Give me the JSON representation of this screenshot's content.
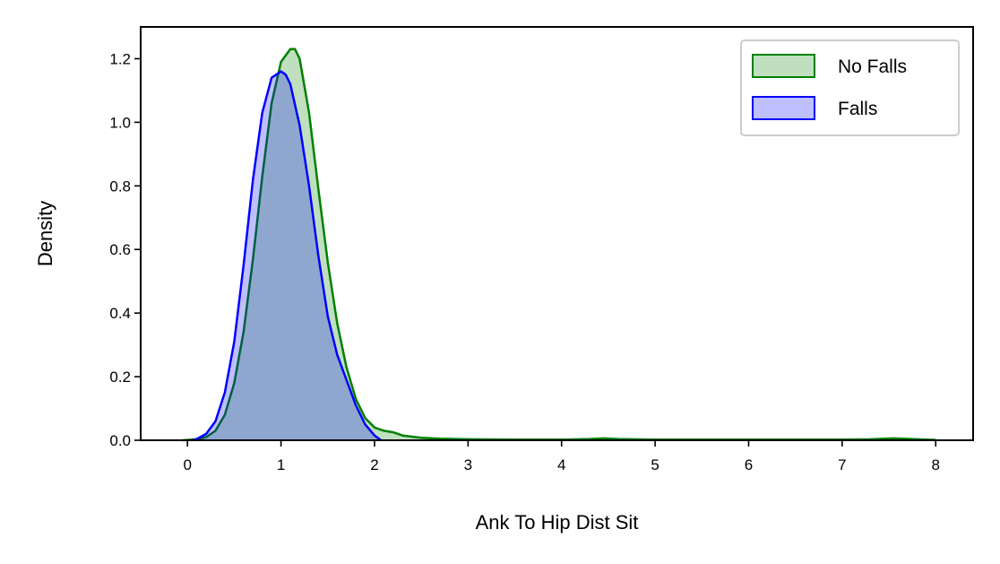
{
  "chart_data": {
    "type": "area",
    "title": "",
    "xlabel": "Ank To Hip Dist Sit",
    "ylabel": "Density",
    "xlim": [
      -0.5,
      8.4
    ],
    "ylim": [
      0,
      1.3
    ],
    "xticks": [
      0,
      1,
      2,
      3,
      4,
      5,
      6,
      7,
      8
    ],
    "yticks": [
      0.0,
      0.2,
      0.4,
      0.6,
      0.8,
      1.0,
      1.2
    ],
    "xtick_labels": [
      "0",
      "1",
      "2",
      "3",
      "4",
      "5",
      "6",
      "7",
      "8"
    ],
    "ytick_labels": [
      "0.0",
      "0.2",
      "0.4",
      "0.6",
      "0.8",
      "1.0",
      "1.2"
    ],
    "grid": false,
    "legend_position": "top-right",
    "series": [
      {
        "name": "No Falls",
        "line_color": "#008000",
        "fill_color": "#008000",
        "fill_opacity": 0.25,
        "x": [
          -0.05,
          0.1,
          0.2,
          0.3,
          0.4,
          0.5,
          0.6,
          0.7,
          0.8,
          0.9,
          1.0,
          1.1,
          1.15,
          1.2,
          1.3,
          1.4,
          1.5,
          1.6,
          1.7,
          1.8,
          1.9,
          2.0,
          2.1,
          2.2,
          2.3,
          2.5,
          2.7,
          3.0,
          3.5,
          4.0,
          4.3,
          4.45,
          4.6,
          5.0,
          6.0,
          7.0,
          7.3,
          7.55,
          7.8,
          8.0
        ],
        "y": [
          0.0,
          0.003,
          0.01,
          0.03,
          0.08,
          0.18,
          0.34,
          0.57,
          0.83,
          1.06,
          1.19,
          1.23,
          1.23,
          1.2,
          1.03,
          0.79,
          0.56,
          0.37,
          0.23,
          0.13,
          0.07,
          0.04,
          0.03,
          0.025,
          0.015,
          0.008,
          0.005,
          0.003,
          0.002,
          0.002,
          0.004,
          0.006,
          0.004,
          0.002,
          0.002,
          0.002,
          0.003,
          0.006,
          0.003,
          0.001
        ]
      },
      {
        "name": "Falls",
        "line_color": "#0000ff",
        "fill_color": "#0000ff",
        "fill_opacity": 0.25,
        "x": [
          0.05,
          0.1,
          0.2,
          0.3,
          0.4,
          0.5,
          0.6,
          0.7,
          0.8,
          0.9,
          1.0,
          1.05,
          1.1,
          1.2,
          1.3,
          1.4,
          1.5,
          1.6,
          1.7,
          1.8,
          1.9,
          2.0,
          2.07
        ],
        "y": [
          0.0,
          0.004,
          0.02,
          0.06,
          0.15,
          0.31,
          0.55,
          0.82,
          1.03,
          1.14,
          1.16,
          1.15,
          1.12,
          0.99,
          0.8,
          0.58,
          0.39,
          0.27,
          0.19,
          0.11,
          0.05,
          0.015,
          0.0
        ]
      }
    ]
  }
}
